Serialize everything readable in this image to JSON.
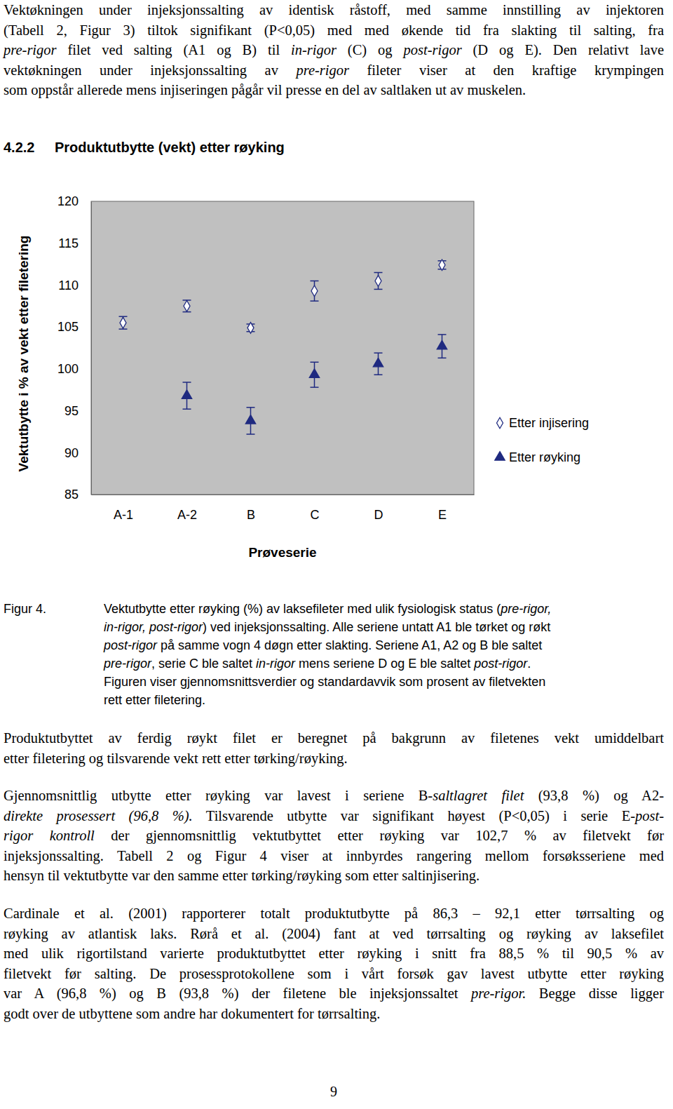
{
  "paragraphs": [
    {
      "lines": [
        [
          {
            "text": "Vektøkningen under injeksjonssalting av identisk råstoff, med samme innstilling av injektoren"
          }
        ],
        [
          {
            "text": "(Tabell 2, Figur 3) tiltok signifikant (P<0,05) med med økende tid fra slakting til salting, fra"
          }
        ],
        [
          {
            "text": "pre-rigor",
            "italic": true
          },
          {
            "text": " filet ved salting (A1 og B) til "
          },
          {
            "text": "in-rigor",
            "italic": true
          },
          {
            "text": " (C) og "
          },
          {
            "text": "post-rigor",
            "italic": true
          },
          {
            "text": " (D og E). Den relativt lave"
          }
        ],
        [
          {
            "text": "vektøkningen under injeksjonssalting av "
          },
          {
            "text": "pre-rigor",
            "italic": true
          },
          {
            "text": " fileter viser at den kraftige krympingen"
          }
        ],
        [
          {
            "text": "som oppstår allerede mens injiseringen pågår vil presse en del av saltlaken ut av muskelen."
          }
        ]
      ]
    },
    {
      "lines": [
        [
          {
            "text": "Produktutbyttet av ferdig røykt filet er beregnet på bakgrunn av filetenes vekt umiddelbart"
          }
        ],
        [
          {
            "text": "etter filetering og tilsvarende vekt rett etter tørking/røyking."
          }
        ]
      ]
    },
    {
      "lines": [
        [
          {
            "text": "Gjennomsnittlig utbytte etter røyking var lavest i seriene B-"
          },
          {
            "text": "saltlagret filet",
            "italic": true
          },
          {
            "text": " (93,8 %) og A2-"
          }
        ],
        [
          {
            "text": "direkte prosessert (96,8 %).",
            "italic": true
          },
          {
            "text": " Tilsvarende utbytte var signifikant høyest (P<0,05) i serie E-"
          },
          {
            "text": "post-",
            "italic": true
          }
        ],
        [
          {
            "text": "rigor kontroll",
            "italic": true
          },
          {
            "text": " der gjennomsnittlig vektutbyttet etter røyking var 102,7 % av filetvekt før"
          }
        ],
        [
          {
            "text": "injeksjonssalting. Tabell 2 og Figur 4 viser at innbyrdes rangering mellom forsøksseriene med"
          }
        ],
        [
          {
            "text": "hensyn til vektutbytte var den samme etter tørking/røyking som etter saltinjisering."
          }
        ]
      ]
    },
    {
      "lines": [
        [
          {
            "text": "Cardinale et al. (2001) rapporterer totalt produktutbytte på 86,3 – 92,1 etter tørrsalting og"
          }
        ],
        [
          {
            "text": "røyking av atlantisk laks. Rørå et al. (2004) fant at ved tørrsalting og røyking av laksefilet"
          }
        ],
        [
          {
            "text": "med ulik rigortilstand varierte produktutbyttet etter røyking i snitt fra 88,5 % til 90,5 % av"
          }
        ],
        [
          {
            "text": "filetvekt før salting. De prosessprotokollene som i vårt forsøk gav lavest utbytte etter røyking"
          }
        ],
        [
          {
            "text": "var A (96,8 %) og B (93,8 %) der filetene ble injeksjonssaltet "
          },
          {
            "text": "pre-rigor.",
            "italic": true
          },
          {
            "text": " Begge disse ligger"
          }
        ],
        [
          {
            "text": "godt over de utbyttene som andre har dokumentert for tørrsalting."
          }
        ]
      ]
    }
  ],
  "heading": {
    "number": "4.2.2",
    "title": "Produktutbytte (vekt) etter røyking"
  },
  "chart_data": {
    "type": "scatter",
    "categories": [
      "A-1",
      "A-2",
      "B",
      "C",
      "D",
      "E"
    ],
    "x_label": "Prøveserie",
    "y_label": "Vektutbytte i % av vekt etter filetering",
    "ylim": [
      85,
      120
    ],
    "yticks": [
      85,
      90,
      95,
      100,
      105,
      110,
      115,
      120
    ],
    "grid": false,
    "legend": "right",
    "series": [
      {
        "name": "Etter injisering",
        "color": "#1f2a80",
        "marker": "diamond-open",
        "values": [
          105.5,
          107.5,
          104.9,
          109.3,
          110.5,
          112.4
        ],
        "errors": [
          0.75,
          0.7,
          0.45,
          1.2,
          1.0,
          0.5
        ]
      },
      {
        "name": "Etter røyking",
        "color": "#1f2a80",
        "marker": "triangle",
        "values": [
          null,
          96.8,
          93.8,
          99.3,
          100.6,
          102.7
        ],
        "errors": [
          null,
          1.6,
          1.6,
          1.5,
          1.3,
          1.4
        ]
      }
    ]
  },
  "caption": {
    "label": "Figur 4.",
    "lines": [
      [
        {
          "text": "Vektutbytte etter røyking (%) av laksefileter med ulik fysiologisk status ("
        },
        {
          "text": "pre-rigor,",
          "italic": true
        }
      ],
      [
        {
          "text": "in-rigor, post-rigor",
          "italic": true
        },
        {
          "text": ") ved injeksjonssalting. Alle seriene untatt A1 ble tørket og røkt"
        }
      ],
      [
        {
          "text": "post-rigor",
          "italic": true
        },
        {
          "text": " på samme vogn 4 døgn etter slakting. Seriene A1, A2 og B ble saltet"
        }
      ],
      [
        {
          "text": "pre-rigor",
          "italic": true
        },
        {
          "text": ", serie C ble saltet "
        },
        {
          "text": "in-rigor",
          "italic": true
        },
        {
          "text": " mens seriene D og E ble saltet "
        },
        {
          "text": "post-rigor",
          "italic": true
        },
        {
          "text": "."
        }
      ],
      [
        {
          "text": "Figuren viser gjennomsnittsverdier og standardavvik som prosent av filetvekten"
        }
      ],
      [
        {
          "text": "rett etter filetering."
        }
      ]
    ]
  },
  "page_number": 9
}
